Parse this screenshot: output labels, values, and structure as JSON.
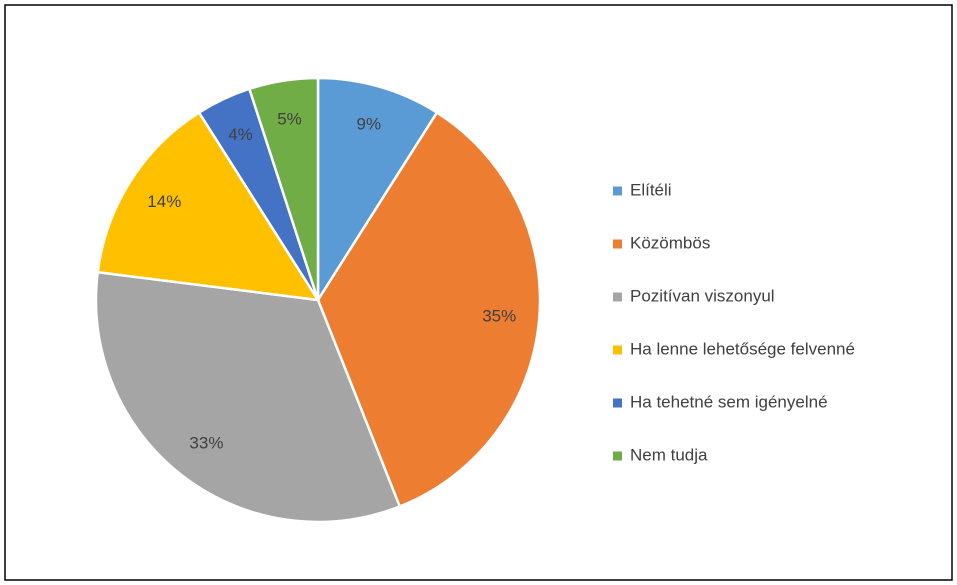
{
  "chart_data": {
    "type": "pie",
    "categories": [
      "Elítéli",
      "Közömbös",
      "Pozitívan viszonyul",
      "Ha lenne lehetősége felvenné",
      "Ha tehetné sem igényelné",
      "Nem tudja"
    ],
    "values": [
      9,
      35,
      33,
      14,
      4,
      5
    ],
    "value_labels": [
      "9%",
      "35%",
      "33%",
      "14%",
      "4%",
      "5%"
    ],
    "colors": [
      "#5b9bd5",
      "#ed7d31",
      "#a5a5a5",
      "#ffc000",
      "#4472c4",
      "#70ad47"
    ],
    "legend": "right"
  }
}
